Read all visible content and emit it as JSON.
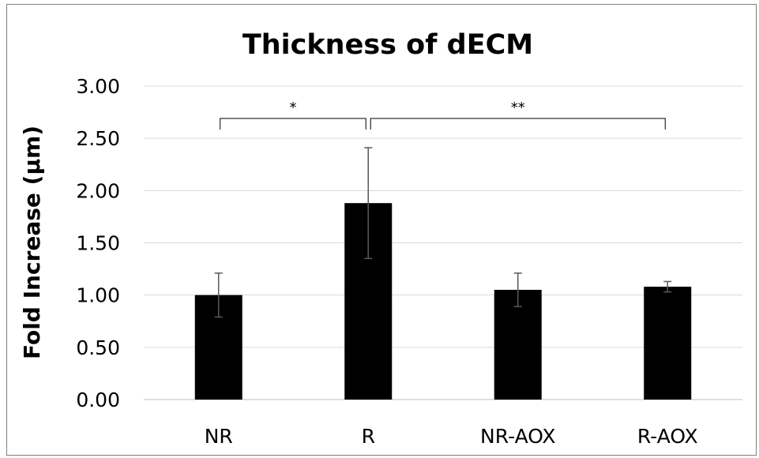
{
  "chart_data": {
    "type": "bar",
    "title": "Thickness of dECM",
    "xlabel": "",
    "ylabel": "Fold Increase (µm)",
    "categories": [
      "NR",
      "R",
      "NR-AOX",
      "R-AOX"
    ],
    "values": [
      1.0,
      1.88,
      1.05,
      1.08
    ],
    "error_bars": [
      0.21,
      0.53,
      0.16,
      0.05
    ],
    "ylim": [
      0,
      3.0
    ],
    "yticks": [
      "0.00",
      "0.50",
      "1.00",
      "1.50",
      "2.00",
      "2.50",
      "3.00"
    ],
    "ytick_values": [
      0,
      0.5,
      1.0,
      1.5,
      2.0,
      2.5,
      3.0
    ],
    "grid": true,
    "bar_color": "#000000",
    "annotations": [
      {
        "label": "*",
        "from": "NR",
        "to": "R"
      },
      {
        "label": "**",
        "from": "R",
        "to": "R-AOX"
      }
    ]
  }
}
